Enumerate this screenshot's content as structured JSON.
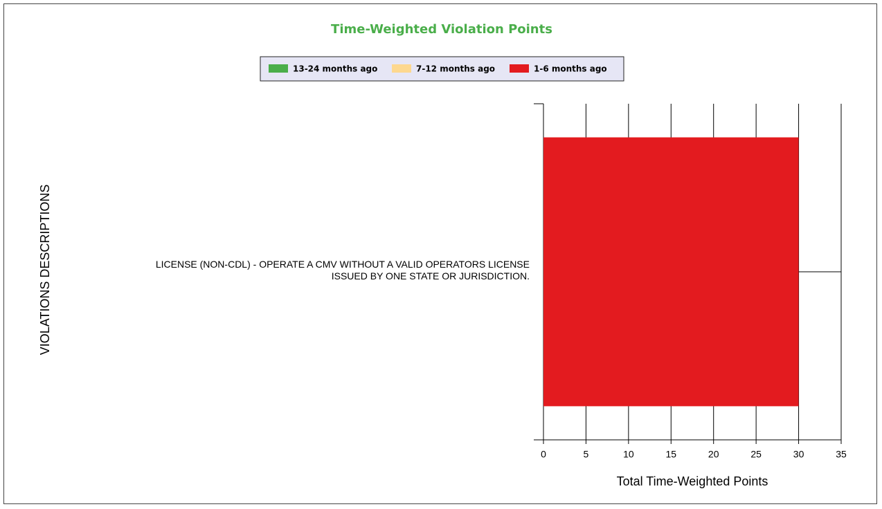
{
  "chart_data": {
    "type": "stacked-barh",
    "title": "Time-Weighted Violation Points",
    "xlabel": "Total Time-Weighted Points",
    "ylabel": "VIOLATIONS DESCRIPTIONS",
    "categories": [
      "LICENSE (NON-CDL) - OPERATE A CMV WITHOUT A VALID OPERATORS LICENSE ISSUED BY ONE STATE OR JURISDICTION."
    ],
    "series": [
      {
        "name": "13-24 months ago",
        "color": "#4aae4a",
        "values": [
          0
        ]
      },
      {
        "name": "7-12 months ago",
        "color": "#fdd88f",
        "values": [
          0
        ]
      },
      {
        "name": "1-6 months ago",
        "color": "#e31b1f",
        "values": [
          30
        ]
      }
    ],
    "xlim": [
      0,
      35
    ],
    "xticks": [
      0,
      5,
      10,
      15,
      20,
      25,
      30,
      35
    ],
    "grid": true
  }
}
